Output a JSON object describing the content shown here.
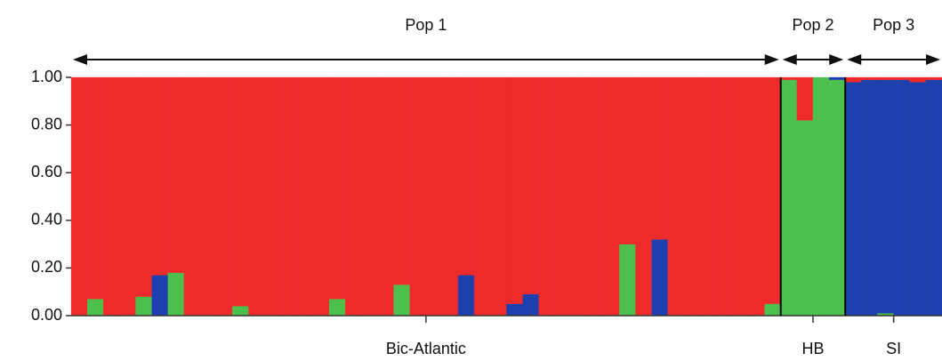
{
  "chart_data": {
    "type": "structure",
    "ylim": [
      0,
      1
    ],
    "yticks": [
      {
        "value": 0,
        "label": "0.00"
      },
      {
        "value": 0.2,
        "label": "0.20"
      },
      {
        "value": 0.4,
        "label": "0.40"
      },
      {
        "value": 0.6,
        "label": "0.60"
      },
      {
        "value": 0.8,
        "label": "0.80"
      },
      {
        "value": 1,
        "label": "1.00"
      }
    ],
    "groups": [
      {
        "top_label": "Pop 1",
        "label": "Bic-Atlantic",
        "size": 44
      },
      {
        "top_label": "Pop 2",
        "label": "HB",
        "size": 4
      },
      {
        "top_label": "Pop 3",
        "label": "SI",
        "size": 6
      }
    ],
    "series": [
      {
        "color": "#4cbf4c",
        "values": [
          0,
          0.07,
          0,
          0,
          0.08,
          0,
          0.18,
          0,
          0,
          0,
          0.04,
          0,
          0,
          0,
          0,
          0,
          0.07,
          0,
          0,
          0,
          0.13,
          0,
          0,
          0,
          0,
          0,
          0,
          0,
          0,
          0,
          0,
          0,
          0,
          0,
          0.3,
          0,
          0,
          0,
          0,
          0,
          0,
          0,
          0,
          0.05,
          0.99,
          0.82,
          1,
          0.99,
          0,
          0,
          0.01,
          0,
          0,
          0
        ]
      },
      {
        "color": "#1e3fae",
        "values": [
          0,
          0,
          0,
          0,
          0,
          0.17,
          0,
          0,
          0,
          0,
          0,
          0,
          0,
          0,
          0,
          0,
          0,
          0,
          0,
          0,
          0,
          0,
          0,
          0,
          0.17,
          0,
          0,
          0.05,
          0.09,
          0,
          0,
          0,
          0,
          0,
          0,
          0,
          0.32,
          0,
          0,
          0,
          0,
          0,
          0,
          0,
          0,
          0,
          0,
          0.01,
          0.98,
          0.99,
          0.98,
          0.99,
          0.98,
          0.99
        ]
      },
      {
        "color": "#ee2a2a",
        "values": [
          1,
          0.93,
          1,
          1,
          0.92,
          0.83,
          0.82,
          1,
          1,
          1,
          0.96,
          1,
          1,
          1,
          1,
          1,
          0.93,
          1,
          1,
          1,
          0.87,
          1,
          1,
          1,
          0.83,
          1,
          1,
          0.95,
          0.91,
          1,
          1,
          1,
          1,
          1,
          0.7,
          1,
          0.68,
          1,
          1,
          1,
          1,
          1,
          1,
          0.95,
          0.01,
          0.18,
          0,
          0,
          0.02,
          0.01,
          0.01,
          0.01,
          0.02,
          0.01
        ]
      }
    ]
  }
}
